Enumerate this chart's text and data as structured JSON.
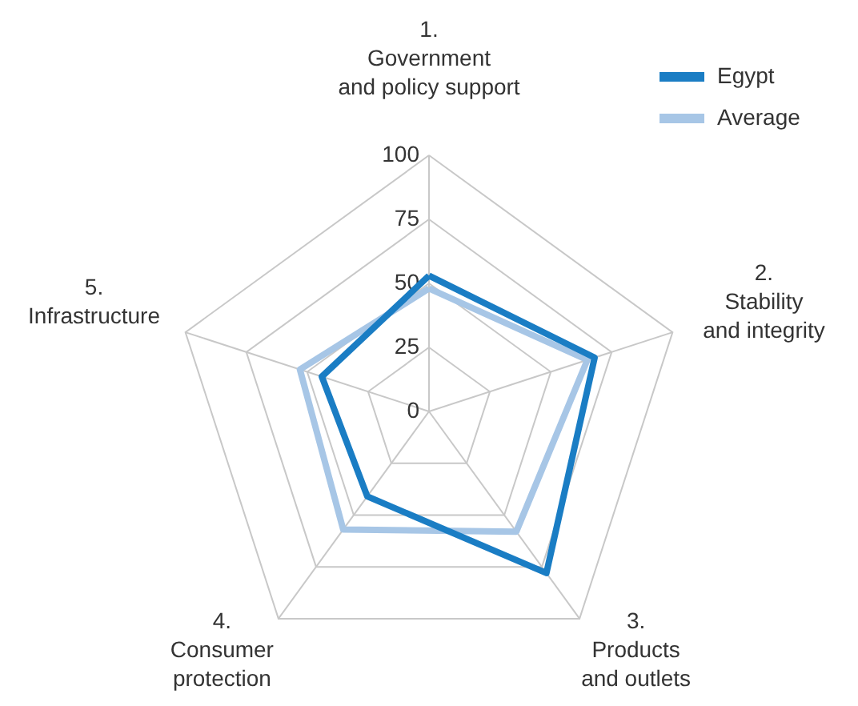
{
  "chart_data": {
    "type": "radar",
    "categories": [
      "1.\nGovernment\nand policy support",
      "2.\nStability\nand integrity",
      "3.\nProducts\nand outlets",
      "4.\nConsumer\nprotection",
      "5.\nInfrastructure"
    ],
    "series": [
      {
        "name": "Egypt",
        "color": "#1a7dc4",
        "values": [
          53,
          68,
          78,
          41,
          44
        ]
      },
      {
        "name": "Average",
        "color": "#a7c6e6",
        "values": [
          48,
          65,
          58,
          57,
          53
        ]
      }
    ],
    "ylim": [
      0,
      100
    ],
    "yticks": [
      0,
      25,
      50,
      75,
      100
    ],
    "grid": true,
    "legend": "top right"
  }
}
